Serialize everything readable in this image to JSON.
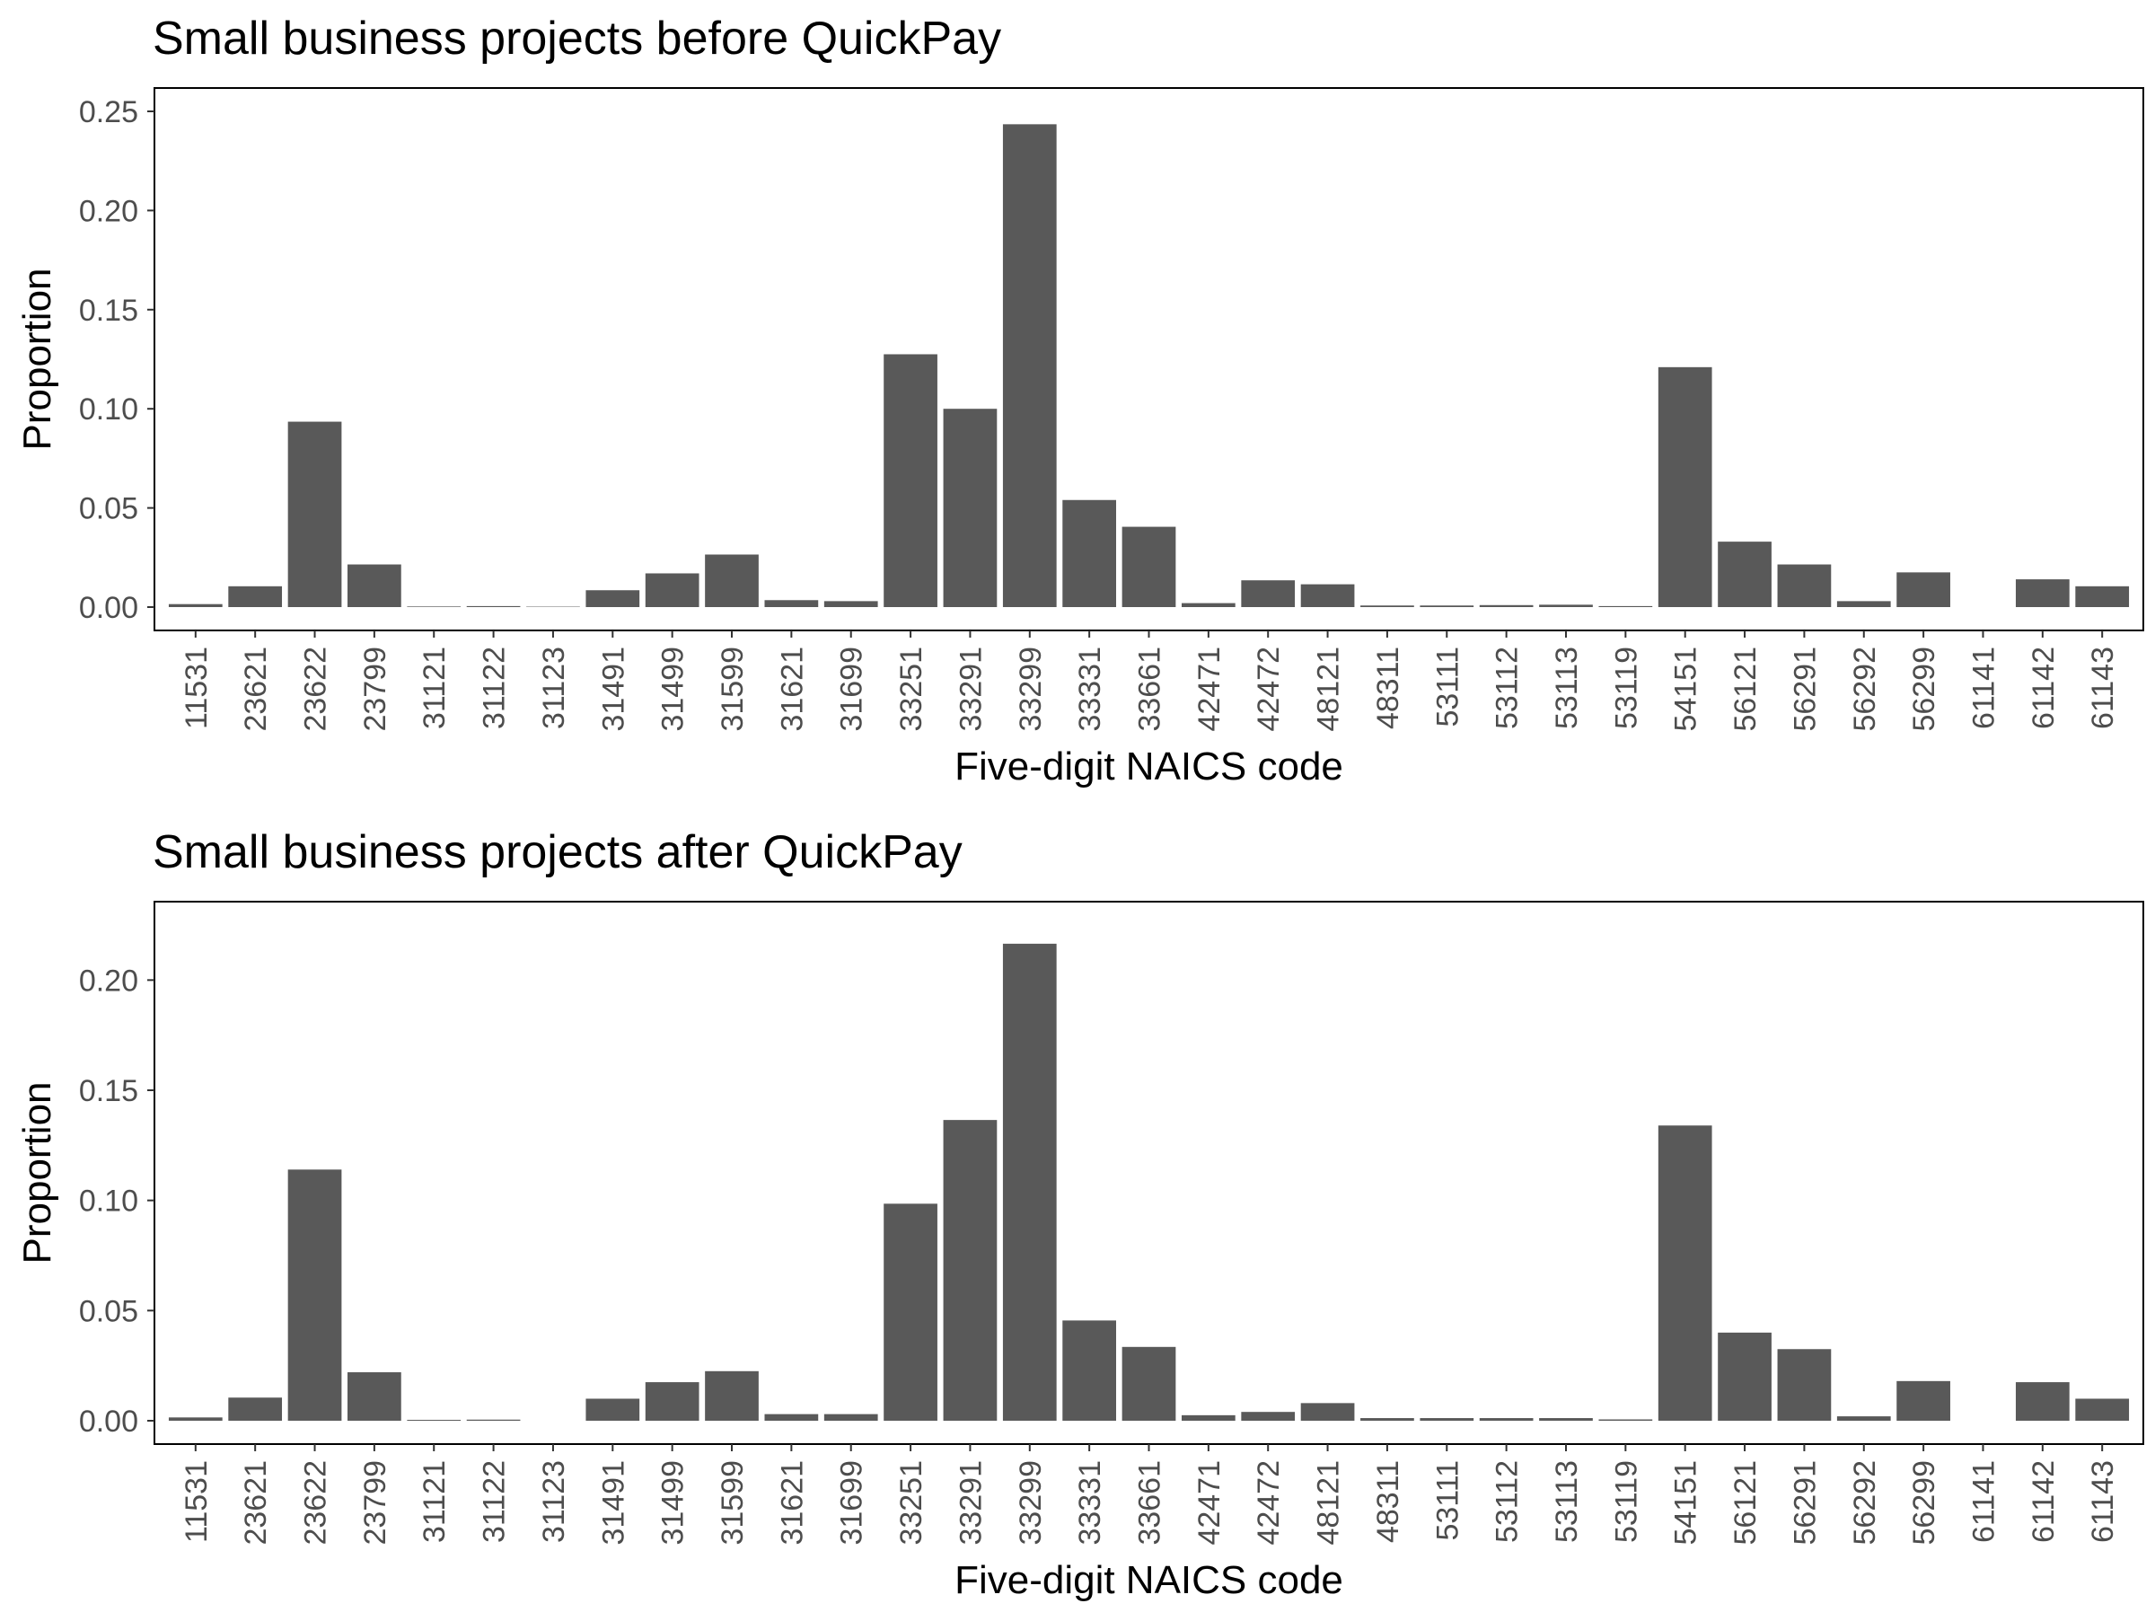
{
  "chart_data": [
    {
      "type": "bar",
      "title": "Small business projects before QuickPay",
      "xlabel": "Five-digit NAICS code",
      "ylabel": "Proportion",
      "ylim": [
        0,
        0.25
      ],
      "yticks": [
        "0.00",
        "0.05",
        "0.10",
        "0.15",
        "0.20",
        "0.25"
      ],
      "categories": [
        "11531",
        "23621",
        "23622",
        "23799",
        "31121",
        "31122",
        "31123",
        "31491",
        "31499",
        "31599",
        "31621",
        "31699",
        "33251",
        "33291",
        "33299",
        "33331",
        "33661",
        "42471",
        "42472",
        "48121",
        "48311",
        "53111",
        "53112",
        "53113",
        "53119",
        "54151",
        "56121",
        "56291",
        "56292",
        "56299",
        "61141",
        "61142",
        "61143"
      ],
      "values": [
        0.0015,
        0.0105,
        0.0935,
        0.0215,
        0.0003,
        0.0005,
        0.0002,
        0.0085,
        0.017,
        0.0265,
        0.0035,
        0.003,
        0.1275,
        0.1,
        0.2435,
        0.054,
        0.0405,
        0.002,
        0.0135,
        0.0115,
        0.0008,
        0.0008,
        0.001,
        0.0012,
        0.0005,
        0.121,
        0.033,
        0.0215,
        0.003,
        0.0175,
        0.0,
        0.014,
        0.0105
      ],
      "grid": false
    },
    {
      "type": "bar",
      "title": "Small business projects after QuickPay",
      "xlabel": "Five-digit NAICS code",
      "ylabel": "Proportion",
      "ylim": [
        0,
        0.225
      ],
      "yticks": [
        "0.00",
        "0.05",
        "0.10",
        "0.15",
        "0.20"
      ],
      "categories": [
        "11531",
        "23621",
        "23622",
        "23799",
        "31121",
        "31122",
        "31123",
        "31491",
        "31499",
        "31599",
        "31621",
        "31699",
        "33251",
        "33291",
        "33299",
        "33331",
        "33661",
        "42471",
        "42472",
        "48121",
        "48311",
        "53111",
        "53112",
        "53113",
        "53119",
        "54151",
        "56121",
        "56291",
        "56292",
        "56299",
        "61141",
        "61142",
        "61143"
      ],
      "values": [
        0.0015,
        0.0105,
        0.114,
        0.022,
        0.0004,
        0.0005,
        0.0,
        0.01,
        0.0175,
        0.0225,
        0.003,
        0.003,
        0.0985,
        0.1365,
        0.2165,
        0.0455,
        0.0335,
        0.0025,
        0.004,
        0.008,
        0.0012,
        0.0012,
        0.0012,
        0.0012,
        0.0006,
        0.134,
        0.04,
        0.0325,
        0.002,
        0.018,
        0.0,
        0.0175,
        0.01
      ],
      "grid": false
    }
  ]
}
